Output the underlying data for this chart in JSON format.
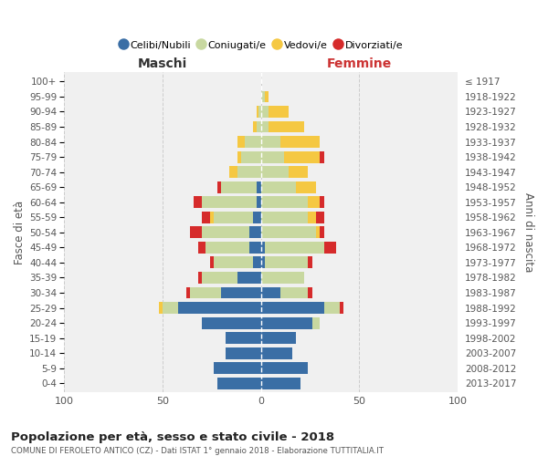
{
  "age_groups": [
    "100+",
    "95-99",
    "90-94",
    "85-89",
    "80-84",
    "75-79",
    "70-74",
    "65-69",
    "60-64",
    "55-59",
    "50-54",
    "45-49",
    "40-44",
    "35-39",
    "30-34",
    "25-29",
    "20-24",
    "15-19",
    "10-14",
    "5-9",
    "0-4"
  ],
  "birth_years": [
    "≤ 1917",
    "1918-1922",
    "1923-1927",
    "1928-1932",
    "1933-1937",
    "1938-1942",
    "1943-1947",
    "1948-1952",
    "1953-1957",
    "1958-1962",
    "1963-1967",
    "1968-1972",
    "1973-1977",
    "1978-1982",
    "1983-1987",
    "1988-1992",
    "1993-1997",
    "1998-2002",
    "2003-2007",
    "2008-2012",
    "2013-2017"
  ],
  "male": {
    "celibi": [
      0,
      0,
      0,
      0,
      0,
      0,
      0,
      2,
      2,
      4,
      6,
      6,
      4,
      12,
      20,
      42,
      30,
      18,
      18,
      24,
      22
    ],
    "coniugati": [
      0,
      0,
      1,
      2,
      8,
      10,
      12,
      18,
      28,
      20,
      24,
      22,
      20,
      18,
      16,
      8,
      0,
      0,
      0,
      0,
      0
    ],
    "vedovi": [
      0,
      0,
      1,
      2,
      4,
      2,
      4,
      0,
      0,
      2,
      0,
      0,
      0,
      0,
      0,
      2,
      0,
      0,
      0,
      0,
      0
    ],
    "divorziati": [
      0,
      0,
      0,
      0,
      0,
      0,
      0,
      2,
      4,
      4,
      6,
      4,
      2,
      2,
      2,
      0,
      0,
      0,
      0,
      0,
      0
    ]
  },
  "female": {
    "nubili": [
      0,
      0,
      0,
      0,
      0,
      0,
      0,
      0,
      0,
      0,
      0,
      2,
      2,
      0,
      10,
      32,
      26,
      18,
      16,
      24,
      20
    ],
    "coniugate": [
      0,
      2,
      4,
      4,
      10,
      12,
      14,
      18,
      24,
      24,
      28,
      30,
      22,
      22,
      14,
      8,
      4,
      0,
      0,
      0,
      0
    ],
    "vedove": [
      0,
      2,
      10,
      18,
      20,
      18,
      10,
      10,
      6,
      4,
      2,
      0,
      0,
      0,
      0,
      0,
      0,
      0,
      0,
      0,
      0
    ],
    "divorziate": [
      0,
      0,
      0,
      0,
      0,
      2,
      0,
      0,
      2,
      4,
      2,
      6,
      2,
      0,
      2,
      2,
      0,
      0,
      0,
      0,
      0
    ]
  },
  "colors": {
    "celibi": "#3a6ea5",
    "coniugati": "#c8d8a0",
    "vedovi": "#f5c842",
    "divorziati": "#d62b2b"
  },
  "title": "Popolazione per età, sesso e stato civile - 2018",
  "subtitle": "COMUNE DI FEROLETO ANTICO (CZ) - Dati ISTAT 1° gennaio 2018 - Elaborazione TUTTITALIA.IT",
  "header_maschi": "Maschi",
  "header_femmine": "Femmine",
  "ylabel_left": "Fasce di età",
  "ylabel_right": "Anni di nascita",
  "legend_labels": [
    "Celibi/Nubili",
    "Coniugati/e",
    "Vedovi/e",
    "Divorziati/e"
  ],
  "xlim": 100,
  "fig_bg": "#ffffff",
  "ax_bg": "#f0f0f0"
}
